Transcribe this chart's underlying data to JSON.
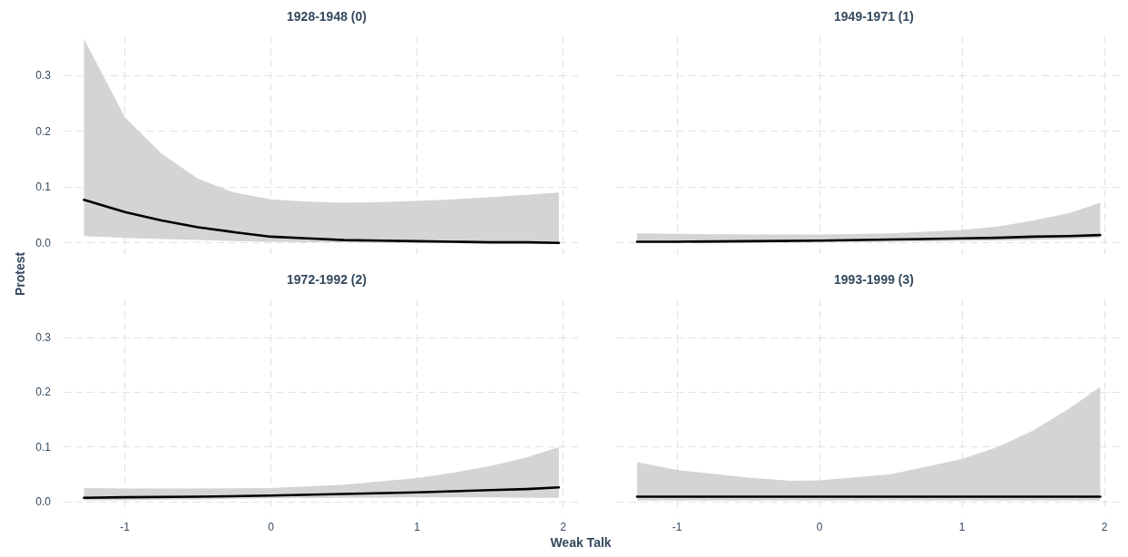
{
  "chart_data": [
    {
      "type": "line",
      "title": "1928-1948 (0)",
      "ylabel": "Protest",
      "x": [
        -1.28,
        -1,
        -0.75,
        -0.5,
        -0.25,
        0,
        0.25,
        0.5,
        0.75,
        1,
        1.25,
        1.5,
        1.75,
        1.97
      ],
      "xlim": [
        -1.42,
        2.12
      ],
      "xticks": [
        -1,
        0,
        1,
        2
      ],
      "ylim": [
        -0.02,
        0.37
      ],
      "yticks": [
        {
          "value": 0,
          "label": "0.0"
        },
        {
          "value": 0.1,
          "label": "0.1"
        },
        {
          "value": 0.2,
          "label": "0.2"
        },
        {
          "value": 0.3,
          "label": "0.3"
        }
      ],
      "grid": true,
      "tick_labels": "y",
      "series": [
        {
          "color": "#000000",
          "values": [
            0.077,
            0.055,
            0.04,
            0.028,
            0.019,
            0.011,
            0.008,
            0.005,
            0.004,
            0.003,
            0.002,
            0.001,
            0.001,
            0.0
          ],
          "lower": [
            0.012,
            0.009,
            0.007,
            0.005,
            0.003,
            0.002,
            0.001,
            0.001,
            0.0,
            0.0,
            0.0,
            0.0,
            0.0,
            0.0
          ],
          "upper": [
            0.365,
            0.225,
            0.16,
            0.115,
            0.09,
            0.078,
            0.074,
            0.072,
            0.073,
            0.075,
            0.078,
            0.082,
            0.086,
            0.09
          ]
        }
      ]
    },
    {
      "type": "line",
      "title": "1949-1971 (1)",
      "x": [
        -1.28,
        -1,
        -0.5,
        0,
        0.5,
        1,
        1.25,
        1.5,
        1.75,
        1.97
      ],
      "xlim": [
        -1.42,
        2.12
      ],
      "xticks": [
        -1,
        0,
        1,
        2
      ],
      "ylim": [
        -0.02,
        0.37
      ],
      "yticks": [
        0,
        0.1,
        0.2,
        0.3
      ],
      "grid": true,
      "tick_labels": false,
      "series": [
        {
          "color": "#000000",
          "values": [
            0.002,
            0.002,
            0.003,
            0.004,
            0.006,
            0.008,
            0.009,
            0.011,
            0.012,
            0.014
          ],
          "lower": [
            0.0,
            0.0,
            0.0,
            0.001,
            0.002,
            0.003,
            0.004,
            0.005,
            0.007,
            0.009
          ],
          "upper": [
            0.017,
            0.016,
            0.015,
            0.015,
            0.017,
            0.023,
            0.029,
            0.04,
            0.053,
            0.072
          ]
        }
      ]
    },
    {
      "type": "line",
      "title": "1972-1992 (2)",
      "xlabel": "Weak Talk",
      "x": [
        -1.28,
        -1,
        -0.5,
        0,
        0.5,
        1,
        1.25,
        1.5,
        1.75,
        1.97
      ],
      "xlim": [
        -1.42,
        2.12
      ],
      "xticks": [
        -1,
        0,
        1,
        2
      ],
      "ylim": [
        -0.02,
        0.37
      ],
      "yticks": [
        {
          "value": 0,
          "label": "0.0"
        },
        {
          "value": 0.1,
          "label": "0.1"
        },
        {
          "value": 0.2,
          "label": "0.2"
        },
        {
          "value": 0.3,
          "label": "0.3"
        }
      ],
      "grid": true,
      "series": [
        {
          "color": "#000000",
          "values": [
            0.007,
            0.008,
            0.009,
            0.011,
            0.014,
            0.017,
            0.019,
            0.021,
            0.023,
            0.026
          ],
          "lower": [
            0.002,
            0.003,
            0.004,
            0.006,
            0.007,
            0.008,
            0.008,
            0.008,
            0.007,
            0.007
          ],
          "upper": [
            0.025,
            0.024,
            0.024,
            0.025,
            0.031,
            0.043,
            0.053,
            0.065,
            0.081,
            0.1
          ]
        }
      ]
    },
    {
      "type": "line",
      "title": "1993-1999 (3)",
      "x": [
        -1.28,
        -1,
        -0.5,
        -0.2,
        0,
        0.5,
        1,
        1.25,
        1.5,
        1.75,
        1.97
      ],
      "xlim": [
        -1.42,
        2.12
      ],
      "xticks": [
        -1,
        0,
        1,
        2
      ],
      "ylim": [
        -0.02,
        0.37
      ],
      "yticks": [
        0,
        0.1,
        0.2,
        0.3
      ],
      "grid": true,
      "tick_labels": "x",
      "series": [
        {
          "color": "#000000",
          "values": [
            0.009,
            0.009,
            0.009,
            0.009,
            0.009,
            0.009,
            0.009,
            0.009,
            0.009,
            0.009,
            0.009
          ],
          "lower": [
            0.002,
            0.002,
            0.002,
            0.002,
            0.002,
            0.002,
            0.002,
            0.002,
            0.002,
            0.002,
            0.002
          ],
          "upper": [
            0.072,
            0.058,
            0.044,
            0.038,
            0.039,
            0.05,
            0.078,
            0.1,
            0.13,
            0.17,
            0.21
          ]
        }
      ]
    }
  ]
}
